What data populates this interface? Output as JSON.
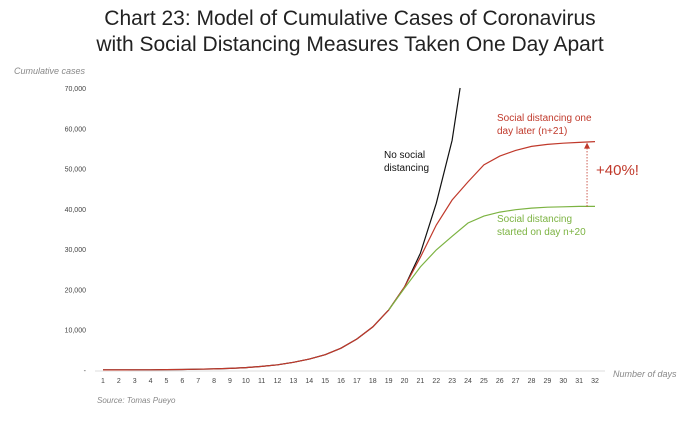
{
  "chart_data": {
    "type": "line",
    "title_line1": "Chart 23: Model of Cumulative Cases of Coronavirus",
    "title_line2": "with Social Distancing Measures Taken One Day Apart",
    "ylabel": "Cumulative cases",
    "xlabel": "Number of days",
    "source": "Source: Tomas Pueyo",
    "ylim": [
      0,
      70000
    ],
    "yticks": [
      0,
      10000,
      20000,
      30000,
      40000,
      50000,
      60000,
      70000
    ],
    "ytick_labels": [
      "-",
      "10,000",
      "20,000",
      "30,000",
      "40,000",
      "50,000",
      "60,000",
      "70,000"
    ],
    "x": [
      1,
      2,
      3,
      4,
      5,
      6,
      7,
      8,
      9,
      10,
      11,
      12,
      13,
      14,
      15,
      16,
      17,
      18,
      19,
      20,
      21,
      22,
      23,
      24,
      25,
      26,
      27,
      28,
      29,
      30,
      31,
      32
    ],
    "series": [
      {
        "name": "No social distancing",
        "label_line1": "No social",
        "label_line2": "distancing",
        "color": "#111111",
        "x": [
          1,
          2,
          3,
          4,
          5,
          6,
          7,
          8,
          9,
          10,
          11,
          12,
          13,
          14,
          15,
          16,
          17,
          18,
          19,
          20,
          21,
          22,
          23,
          23.5
        ],
        "values": [
          15,
          25,
          40,
          60,
          90,
          130,
          200,
          280,
          400,
          600,
          900,
          1300,
          1900,
          2700,
          3800,
          5400,
          7700,
          10700,
          14900,
          20600,
          29000,
          41400,
          57000,
          70000
        ]
      },
      {
        "name": "Social distancing one day later (n+21)",
        "label_line1": "Social distancing one",
        "label_line2": "day later (n+21)",
        "color": "#c0392b",
        "x": [
          1,
          2,
          3,
          4,
          5,
          6,
          7,
          8,
          9,
          10,
          11,
          12,
          13,
          14,
          15,
          16,
          17,
          18,
          19,
          20,
          21,
          22,
          23,
          24,
          25,
          26,
          27,
          28,
          29,
          30,
          31,
          32
        ],
        "values": [
          15,
          25,
          40,
          60,
          90,
          130,
          200,
          280,
          400,
          600,
          900,
          1300,
          1900,
          2700,
          3800,
          5400,
          7700,
          10700,
          14900,
          20600,
          28000,
          36000,
          42200,
          46700,
          50900,
          53100,
          54500,
          55500,
          56000,
          56300,
          56500,
          56700
        ]
      },
      {
        "name": "Social distancing started on day n+20",
        "label_line1": "Social distancing",
        "label_line2": "started on day n+20",
        "color": "#7cb342",
        "x": [
          19,
          20,
          21,
          22,
          23,
          24,
          25,
          26,
          27,
          28,
          29,
          30,
          31,
          32
        ],
        "values": [
          14900,
          20300,
          25600,
          29800,
          33200,
          36500,
          38200,
          39200,
          39800,
          40200,
          40400,
          40500,
          40600,
          40600
        ]
      }
    ],
    "annotation": {
      "text": "+40%!",
      "color": "#c0392b",
      "x": 31.5,
      "from": 40600,
      "to": 56700
    }
  }
}
